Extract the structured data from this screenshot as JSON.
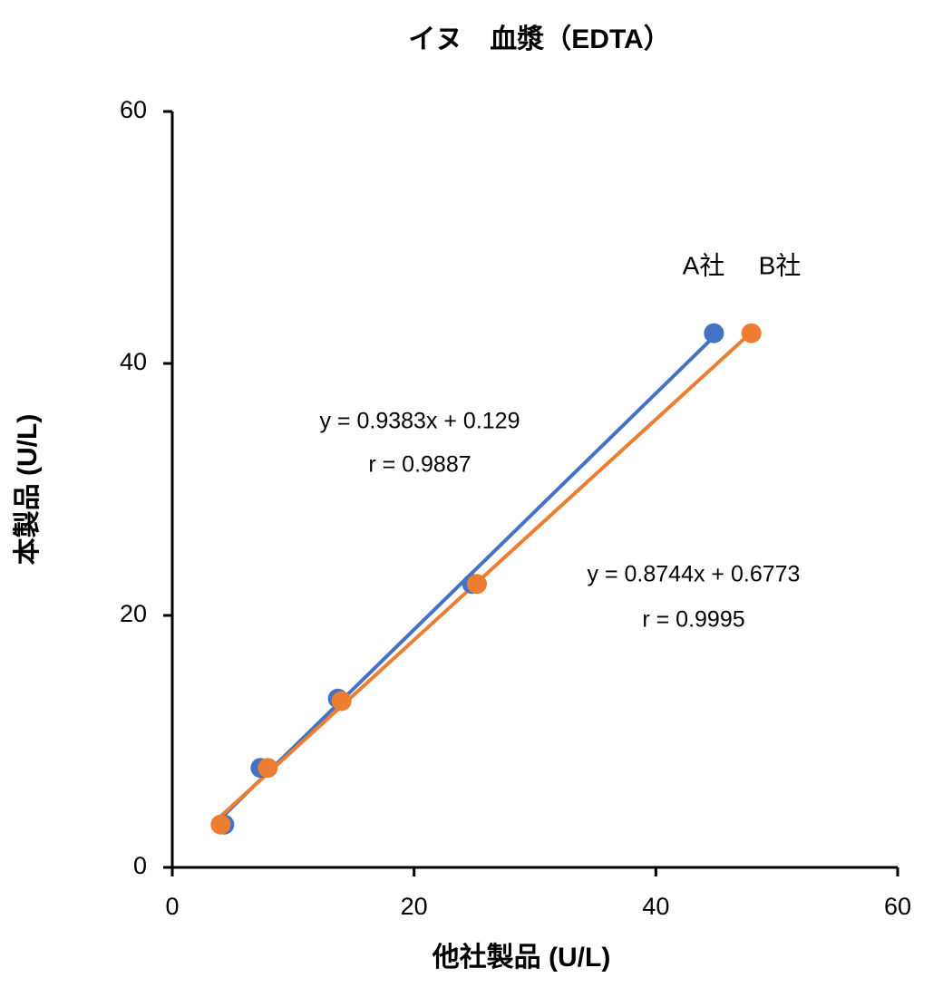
{
  "chart_data": {
    "type": "scatter",
    "title": "イヌ　血漿（EDTA）",
    "x_label": "他社製品 (U/L)",
    "y_label": "本製品 (U/L)",
    "xlim": [
      0,
      60
    ],
    "ylim": [
      0,
      60
    ],
    "xticks": [
      0,
      20,
      40,
      60
    ],
    "yticks": [
      0,
      20,
      40,
      60
    ],
    "grid": false,
    "trendline": true,
    "series": [
      {
        "name": "A社",
        "color": "#4472c4",
        "x": [
          4.3,
          7.3,
          13.7,
          24.8,
          44.8
        ],
        "values": [
          3.4,
          7.9,
          13.4,
          22.5,
          42.4
        ]
      },
      {
        "name": "B社",
        "color": "#ed7d31",
        "x": [
          4.0,
          7.9,
          14.0,
          25.2,
          47.9
        ],
        "values": [
          3.4,
          7.9,
          13.2,
          22.5,
          42.4
        ]
      }
    ],
    "annotations": [
      "y = 0.9383x + 0.129",
      "r = 0.9887",
      "y = 0.8744x + 0.6773",
      "r = 0.9995"
    ]
  }
}
